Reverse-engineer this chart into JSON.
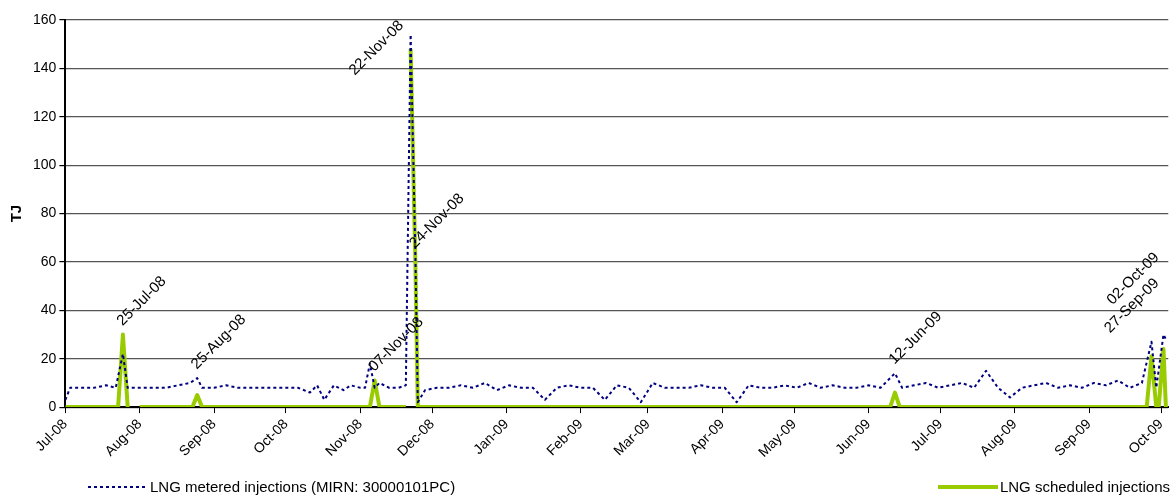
{
  "chart_data": {
    "type": "line",
    "ylabel": "TJ",
    "xlim": [
      "2008-07-01",
      "2009-10-04"
    ],
    "xticks": [
      {
        "value": "2008-07-01",
        "label": "Jul-08"
      },
      {
        "value": "2008-08-01",
        "label": "Aug-08"
      },
      {
        "value": "2008-09-01",
        "label": "Sep-08"
      },
      {
        "value": "2008-10-01",
        "label": "Oct-08"
      },
      {
        "value": "2008-11-01",
        "label": "Nov-08"
      },
      {
        "value": "2008-12-01",
        "label": "Dec-08"
      },
      {
        "value": "2009-01-01",
        "label": "Jan-09"
      },
      {
        "value": "2009-02-01",
        "label": "Feb-09"
      },
      {
        "value": "2009-03-01",
        "label": "Mar-09"
      },
      {
        "value": "2009-04-01",
        "label": "Apr-09"
      },
      {
        "value": "2009-05-01",
        "label": "May-09"
      },
      {
        "value": "2009-06-01",
        "label": "Jun-09"
      },
      {
        "value": "2009-07-01",
        "label": "Jul-09"
      },
      {
        "value": "2009-08-01",
        "label": "Aug-09"
      },
      {
        "value": "2009-09-01",
        "label": "Sep-09"
      },
      {
        "value": "2009-10-01",
        "label": "Oct-09"
      }
    ],
    "ylim": [
      0,
      160
    ],
    "yticks": [
      0,
      20,
      40,
      60,
      80,
      100,
      120,
      140,
      160
    ],
    "grid": "y",
    "legend": "bottom",
    "marker": "none",
    "series": [
      {
        "name": "LNG metered injections (MIRN: 30000101PC)",
        "color": "#000080",
        "line_style": "dotted",
        "x": [
          "2008-07-01",
          "2008-07-03",
          "2008-07-08",
          "2008-07-13",
          "2008-07-18",
          "2008-07-22",
          "2008-07-25",
          "2008-07-27",
          "2008-08-02",
          "2008-08-07",
          "2008-08-12",
          "2008-08-17",
          "2008-08-22",
          "2008-08-25",
          "2008-08-27",
          "2008-09-01",
          "2008-09-06",
          "2008-09-11",
          "2008-09-16",
          "2008-09-21",
          "2008-09-26",
          "2008-10-01",
          "2008-10-06",
          "2008-10-11",
          "2008-10-14",
          "2008-10-17",
          "2008-10-21",
          "2008-10-25",
          "2008-10-28",
          "2008-11-01",
          "2008-11-03",
          "2008-11-05",
          "2008-11-07",
          "2008-11-09",
          "2008-11-13",
          "2008-11-17",
          "2008-11-20",
          "2008-11-22",
          "2008-11-24",
          "2008-11-25",
          "2008-11-28",
          "2008-12-03",
          "2008-12-08",
          "2008-12-13",
          "2008-12-18",
          "2008-12-23",
          "2008-12-28",
          "2009-01-02",
          "2009-01-07",
          "2009-01-12",
          "2009-01-17",
          "2009-01-22",
          "2009-01-27",
          "2009-02-01",
          "2009-02-06",
          "2009-02-11",
          "2009-02-16",
          "2009-02-21",
          "2009-02-26",
          "2009-03-03",
          "2009-03-08",
          "2009-03-13",
          "2009-03-18",
          "2009-03-23",
          "2009-03-28",
          "2009-04-02",
          "2009-04-07",
          "2009-04-12",
          "2009-04-17",
          "2009-04-22",
          "2009-04-27",
          "2009-05-02",
          "2009-05-07",
          "2009-05-12",
          "2009-05-17",
          "2009-05-22",
          "2009-05-27",
          "2009-06-01",
          "2009-06-06",
          "2009-06-12",
          "2009-06-15",
          "2009-06-20",
          "2009-06-25",
          "2009-06-30",
          "2009-07-05",
          "2009-07-10",
          "2009-07-15",
          "2009-07-20",
          "2009-07-25",
          "2009-07-30",
          "2009-08-04",
          "2009-08-09",
          "2009-08-14",
          "2009-08-19",
          "2009-08-24",
          "2009-08-29",
          "2009-09-03",
          "2009-09-08",
          "2009-09-13",
          "2009-09-18",
          "2009-09-23",
          "2009-09-27",
          "2009-09-29",
          "2009-10-02",
          "2009-10-03"
        ],
        "values": [
          3,
          8,
          8,
          8,
          9,
          8,
          22,
          8,
          8,
          8,
          8,
          9,
          10,
          12,
          8,
          8,
          9,
          8,
          8,
          8,
          8,
          8,
          8,
          6,
          9,
          3,
          9,
          7,
          9,
          8,
          8,
          18,
          8,
          10,
          8,
          8,
          9,
          154,
          62,
          2,
          7,
          8,
          8,
          9,
          8,
          10,
          7,
          9,
          8,
          8,
          3,
          8,
          9,
          8,
          8,
          3,
          9,
          8,
          2,
          10,
          8,
          8,
          8,
          9,
          8,
          8,
          2,
          9,
          8,
          8,
          9,
          8,
          10,
          8,
          9,
          8,
          8,
          9,
          8,
          14,
          8,
          9,
          10,
          8,
          9,
          10,
          8,
          15,
          8,
          4,
          8,
          9,
          10,
          8,
          9,
          8,
          10,
          9,
          11,
          8,
          10,
          27,
          8,
          30,
          28
        ]
      },
      {
        "name": "LNG scheduled injections",
        "color": "#99cc00",
        "line_style": "solid",
        "x": [
          "2008-07-01",
          "2008-07-23",
          "2008-07-25",
          "2008-07-27",
          "2008-07-28",
          "2008-08-01",
          "2008-08-23",
          "2008-08-25",
          "2008-08-27",
          "2008-11-05",
          "2008-11-07",
          "2008-11-09",
          "2008-11-20",
          "2008-11-21",
          "2008-11-22",
          "2008-11-24",
          "2008-11-25",
          "2009-06-10",
          "2009-06-12",
          "2009-06-14",
          "2009-09-25",
          "2009-09-27",
          "2009-09-29",
          "2009-09-30",
          "2009-10-02",
          "2009-10-03"
        ],
        "values": [
          0,
          0,
          30,
          0,
          null,
          0,
          0,
          5,
          0,
          0,
          11,
          0,
          0,
          null,
          148,
          59,
          0,
          0,
          6,
          0,
          0,
          21,
          0,
          0,
          24,
          0
        ]
      }
    ],
    "annotations": [
      {
        "text": "25-Jul-08",
        "x": "2008-07-25",
        "y": 30
      },
      {
        "text": "25-Aug-08",
        "x": "2008-08-25",
        "y": 12
      },
      {
        "text": "07-Nov-08",
        "x": "2008-11-07",
        "y": 11
      },
      {
        "text": "22-Nov-08",
        "x": "2008-11-22",
        "y": 154
      },
      {
        "text": "24-Nov-08",
        "x": "2008-11-24",
        "y": 62
      },
      {
        "text": "12-Jun-09",
        "x": "2009-06-12",
        "y": 14
      },
      {
        "text": "27-Sep-09",
        "x": "2009-09-27",
        "y": 27
      },
      {
        "text": "02-Oct-09",
        "x": "2009-10-02",
        "y": 30
      }
    ]
  }
}
